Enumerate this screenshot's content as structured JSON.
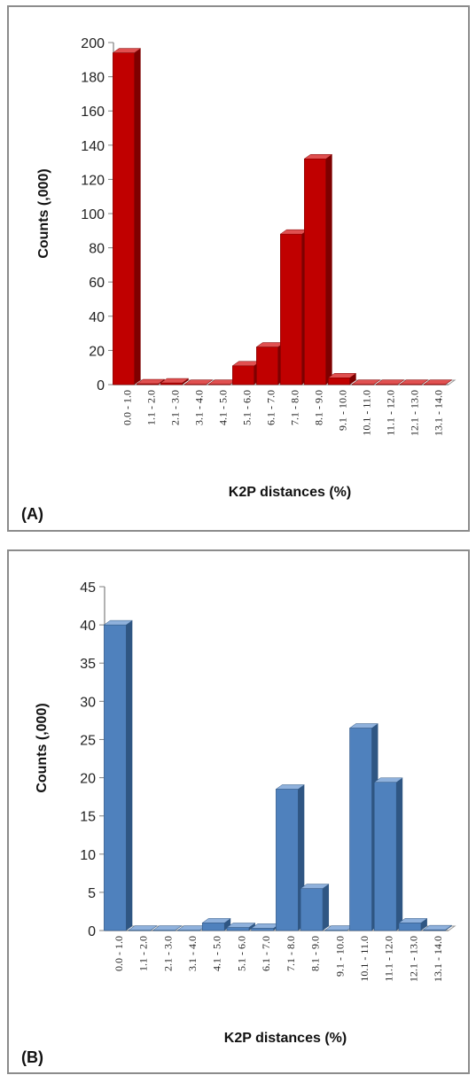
{
  "chart_data": [
    {
      "type": "bar",
      "panel_label": "(A)",
      "ylabel": "Counts (,000)",
      "xlabel": "K2P distances (%)",
      "categories": [
        "0.0 - 1.0",
        "1.1 - 2.0",
        "2.1 - 3.0",
        "3.1 - 4.0",
        "4.1 - 5.0",
        "5.1 - 6.0",
        "6.1 - 7.0",
        "7.1 - 8.0",
        "8.1 - 9.0",
        "9.1 - 10.0",
        "10.1 - 11.0",
        "11.1 - 12.0",
        "12.1 - 13.0",
        "13.1 - 14.0"
      ],
      "values": [
        194,
        0.5,
        1,
        0.2,
        0.2,
        11,
        22,
        88,
        132,
        4,
        0.2,
        0.2,
        0.2,
        0.2
      ],
      "yticks": [
        0,
        20,
        40,
        60,
        80,
        100,
        120,
        140,
        160,
        180,
        200
      ],
      "ylim": [
        0,
        200
      ],
      "grid": false,
      "legend": "none",
      "colors": {
        "front": "#c00000",
        "side": "#7e0000",
        "top": "#e05050"
      }
    },
    {
      "type": "bar",
      "panel_label": "(B)",
      "ylabel": "Counts (,000)",
      "xlabel": "K2P distances (%)",
      "categories": [
        "0.0 - 1.0",
        "1.1 - 2.0",
        "2.1 - 3.0",
        "3.1 - 4.0",
        "4.1 - 5.0",
        "5.1 - 6.0",
        "6.1 - 7.0",
        "7.1 - 8.0",
        "8.1 - 9.0",
        "9.1 - 10.0",
        "10.1 - 11.0",
        "11.1 - 12.0",
        "12.1 - 13.0",
        "13.1 - 14.0"
      ],
      "values": [
        40,
        0.05,
        0.05,
        0.05,
        1,
        0.4,
        0.3,
        18.5,
        5.5,
        0.05,
        26.5,
        19.4,
        1,
        0.1
      ],
      "yticks": [
        0,
        5,
        10,
        15,
        20,
        25,
        30,
        35,
        40,
        45
      ],
      "ylim": [
        0,
        45
      ],
      "grid": false,
      "legend": "none",
      "colors": {
        "front": "#4f81bd",
        "side": "#2f5683",
        "top": "#8fb1dc"
      }
    }
  ]
}
